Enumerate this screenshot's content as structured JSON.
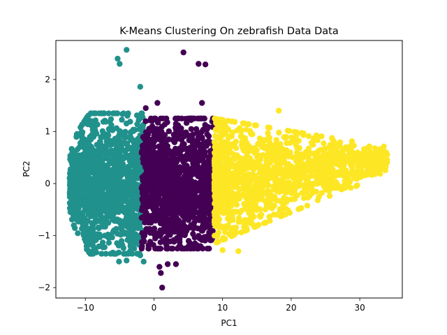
{
  "chart_data": {
    "type": "scatter",
    "title": "K-Means Clustering On zebrafish Data Data",
    "xlabel": "PC1",
    "ylabel": "PC2",
    "xlim": [
      -14.3,
      36.2
    ],
    "ylim": [
      -2.2,
      2.75
    ],
    "xticks": [
      -10,
      0,
      10,
      20,
      30
    ],
    "xtick_labels": [
      "−10",
      "0",
      "10",
      "20",
      "30"
    ],
    "yticks": [
      -2,
      -1,
      0,
      1,
      2
    ],
    "ytick_labels": [
      "−2",
      "−1",
      "0",
      "1",
      "2"
    ],
    "grid": false,
    "legend": "none",
    "clusters": [
      {
        "color": "#21918c",
        "x_range": [
          -12.3,
          -1.5
        ],
        "y_range": [
          -1.35,
          1.5
        ],
        "outliers": [
          [
            -5.3,
            2.4
          ],
          [
            -4.0,
            2.57
          ],
          [
            -5.0,
            2.3
          ],
          [
            -2.0,
            1.86
          ],
          [
            -5.1,
            -1.5
          ],
          [
            -4.0,
            -1.48
          ],
          [
            -1.5,
            -1.5
          ],
          [
            -2.0,
            -1.38
          ],
          [
            -3.5,
            -1.3
          ]
        ]
      },
      {
        "color": "#440154",
        "x_range": [
          -1.8,
          8.8
        ],
        "y_range": [
          -1.45,
          1.35
        ],
        "outliers": [
          [
            4.3,
            2.52
          ],
          [
            6.5,
            2.3
          ],
          [
            7.5,
            2.29
          ],
          [
            1.2,
            -2.0
          ],
          [
            0.5,
            1.55
          ],
          [
            -1.2,
            1.45
          ],
          [
            0.8,
            -1.6
          ],
          [
            2.0,
            -1.55
          ],
          [
            3.2,
            -1.55
          ],
          [
            7.0,
            1.55
          ],
          [
            1.0,
            -1.72
          ]
        ]
      },
      {
        "color": "#fde725",
        "x_range": [
          8.8,
          34.0
        ],
        "y_range": [
          -1.3,
          1.4
        ],
        "outliers": [
          [
            34.0,
            0.56
          ],
          [
            32.2,
            0.68
          ],
          [
            30.8,
            0.55
          ],
          [
            18.2,
            1.4
          ],
          [
            12.3,
            -1.3
          ],
          [
            10.0,
            -1.28
          ],
          [
            29.5,
            -0.05
          ],
          [
            27.5,
            -0.1
          ],
          [
            26.0,
            0.25
          ],
          [
            24.0,
            0.9
          ],
          [
            28.0,
            0.7
          ]
        ]
      }
    ]
  }
}
